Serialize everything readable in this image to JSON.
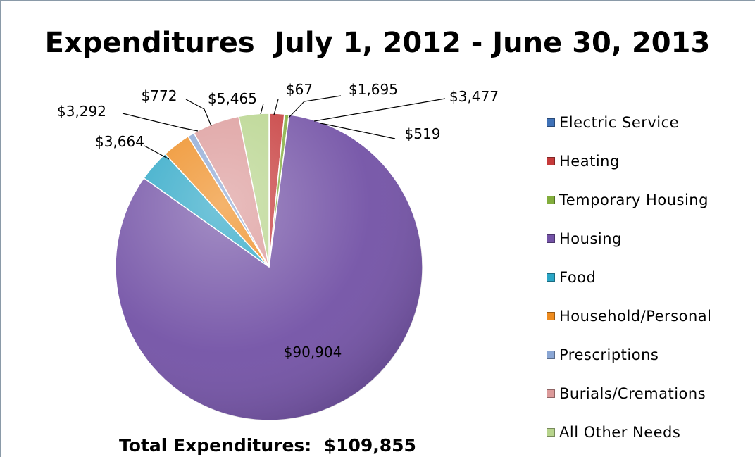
{
  "chart_data": {
    "type": "pie",
    "title": "Expenditures  July 1, 2012 - June 30, 2013",
    "footer": "Total Expenditures:  $109,855",
    "legend_position": "right",
    "slices": [
      {
        "name": "Electric Service",
        "value": 67,
        "label": "$67",
        "color": "#3f72b8"
      },
      {
        "name": "Heating",
        "value": 1695,
        "label": "$1,695",
        "color": "#c63a3a"
      },
      {
        "name": "Temporary Housing",
        "value": 519,
        "label": "$519",
        "color": "#82ad3c"
      },
      {
        "name": "Housing",
        "value": 90904,
        "label": "$90,904",
        "color": "#7352a6"
      },
      {
        "name": "Food",
        "value": 3664,
        "label": "$3,664",
        "color": "#2aa6c6"
      },
      {
        "name": "Household/Personal",
        "value": 3292,
        "label": "$3,292",
        "color": "#ee8b1e"
      },
      {
        "name": "Prescriptions",
        "value": 772,
        "label": "$772",
        "color": "#8aa6d4"
      },
      {
        "name": "Burials/Cremations",
        "value": 5465,
        "label": "$5,465",
        "color": "#dc9a9a"
      },
      {
        "name": "All Other Needs",
        "value": 3477,
        "label": "$3,477",
        "color": "#b7d48c"
      }
    ]
  }
}
